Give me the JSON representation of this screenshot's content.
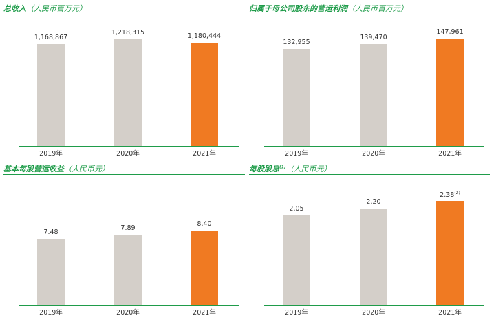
{
  "colors": {
    "accent": "#1f9c4a",
    "bar_past": "#d4cfc9",
    "bar_current": "#f07a22"
  },
  "chart_data": [
    {
      "type": "bar",
      "title": "总收入",
      "unit": "（人民币百万元）",
      "categories": [
        "2019年",
        "2020年",
        "2021年"
      ],
      "values": [
        1168867,
        1218315,
        1180444
      ],
      "value_labels": [
        "1,168,867",
        "1,218,315",
        "1,180,444"
      ],
      "label_notes": [
        "",
        "",
        ""
      ],
      "ylim": [
        0,
        1300000
      ]
    },
    {
      "type": "bar",
      "title": "归属于母公司股东的营运利润",
      "unit": "（人民币百万元）",
      "categories": [
        "2019年",
        "2020年",
        "2021年"
      ],
      "values": [
        132955,
        139470,
        147961
      ],
      "value_labels": [
        "132,955",
        "139,470",
        "147,961"
      ],
      "label_notes": [
        "",
        "",
        ""
      ],
      "ylim": [
        0,
        156000
      ]
    },
    {
      "type": "bar",
      "title": "基本每股营运收益",
      "unit": "（人民币元）",
      "categories": [
        "2019年",
        "2020年",
        "2021年"
      ],
      "values": [
        7.48,
        7.89,
        8.4
      ],
      "value_labels": [
        "7.48",
        "7.89",
        "8.40"
      ],
      "label_notes": [
        "",
        "",
        ""
      ],
      "ylim": [
        0,
        12.8
      ]
    },
    {
      "type": "bar",
      "title": "每股股息",
      "title_note": "(1)",
      "unit": "（人民币元）",
      "categories": [
        "2019年",
        "2020年",
        "2021年"
      ],
      "values": [
        2.05,
        2.2,
        2.38
      ],
      "value_labels": [
        "2.05",
        "2.20",
        "2.38"
      ],
      "label_notes": [
        "",
        "",
        "(2)"
      ],
      "ylim": [
        0,
        2.6
      ]
    }
  ]
}
